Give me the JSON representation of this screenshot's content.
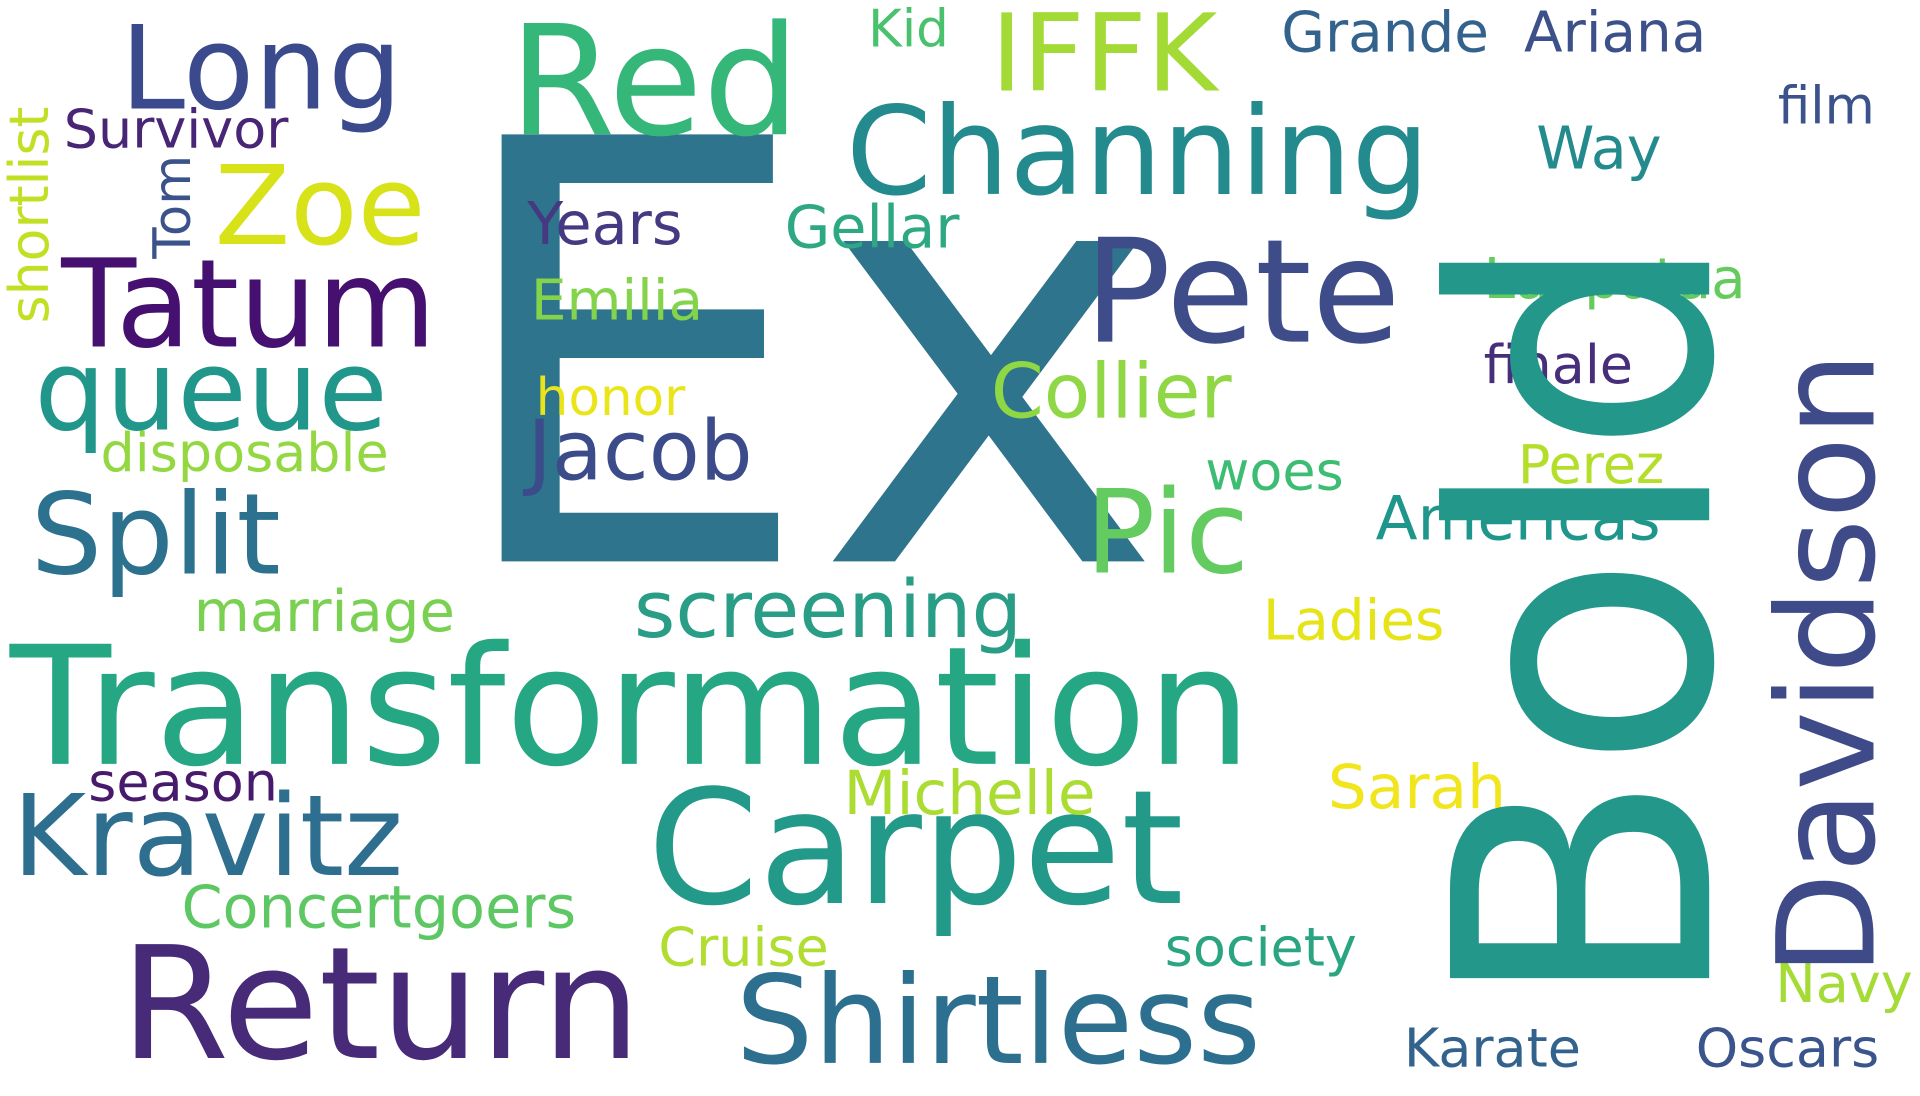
{
  "words": [
    {
      "text": "Ex",
      "color": "#2e748d"
    },
    {
      "text": "Bold",
      "color": "#23978a"
    },
    {
      "text": "Transformation",
      "color": "#26a784"
    },
    {
      "text": "Return",
      "color": "#472b79"
    },
    {
      "text": "Carpet",
      "color": "#239a89"
    },
    {
      "text": "Davidson",
      "color": "#3f4a89"
    },
    {
      "text": "Shirtless",
      "color": "#2d6f8e"
    },
    {
      "text": "Channing",
      "color": "#238a8d"
    },
    {
      "text": "Pete",
      "color": "#3e4c8a"
    },
    {
      "text": "Red",
      "color": "#35b779"
    },
    {
      "text": "Tatum",
      "color": "#45106f"
    },
    {
      "text": "Long",
      "color": "#3a4a8c"
    },
    {
      "text": "Kravitz",
      "color": "#2e6e8e"
    },
    {
      "text": "IFFK",
      "color": "#a3da36"
    },
    {
      "text": "Zoe",
      "color": "#d7e219"
    },
    {
      "text": "queue",
      "color": "#21968b"
    },
    {
      "text": "Split",
      "color": "#2c728e"
    },
    {
      "text": "Pic",
      "color": "#63cb5f"
    },
    {
      "text": "screening",
      "color": "#2a9d86"
    },
    {
      "text": "Collier",
      "color": "#8fd744"
    },
    {
      "text": "Jacob",
      "color": "#3c4b89"
    },
    {
      "text": "Americas",
      "color": "#1f968b"
    },
    {
      "text": "Concertgoers",
      "color": "#5dc863"
    },
    {
      "text": "Michelle",
      "color": "#aadc32"
    },
    {
      "text": "Sarah",
      "color": "#f1e51d"
    },
    {
      "text": "marriage",
      "color": "#7ad151"
    },
    {
      "text": "Gellar",
      "color": "#2ea883"
    },
    {
      "text": "Years",
      "color": "#453a81"
    },
    {
      "text": "Emilia",
      "color": "#84d44b"
    },
    {
      "text": "Laapataa",
      "color": "#66cb5d"
    },
    {
      "text": "Grande",
      "color": "#33628d"
    },
    {
      "text": "Ariana",
      "color": "#3c5089"
    },
    {
      "text": "Survivor",
      "color": "#482575"
    },
    {
      "text": "Way",
      "color": "#238a8d"
    },
    {
      "text": "disposable",
      "color": "#93d741"
    },
    {
      "text": "season",
      "color": "#481a6c"
    },
    {
      "text": "woes",
      "color": "#3dbc74"
    },
    {
      "text": "Perez",
      "color": "#b5de2b"
    },
    {
      "text": "finale",
      "color": "#462e7a"
    },
    {
      "text": "Cruise",
      "color": "#b0dd2f"
    },
    {
      "text": "society",
      "color": "#2ba581"
    },
    {
      "text": "Ladies",
      "color": "#e6e419"
    },
    {
      "text": "Karate",
      "color": "#33638d"
    },
    {
      "text": "Oscars",
      "color": "#3a548c"
    },
    {
      "text": "Navy",
      "color": "#a5db36"
    },
    {
      "text": "honor",
      "color": "#eae51a"
    },
    {
      "text": "film",
      "color": "#3b528b"
    },
    {
      "text": "Kid",
      "color": "#4ac16d"
    },
    {
      "text": "Tom",
      "color": "#3b528b"
    },
    {
      "text": "shortlist",
      "color": "#c2df23"
    }
  ]
}
